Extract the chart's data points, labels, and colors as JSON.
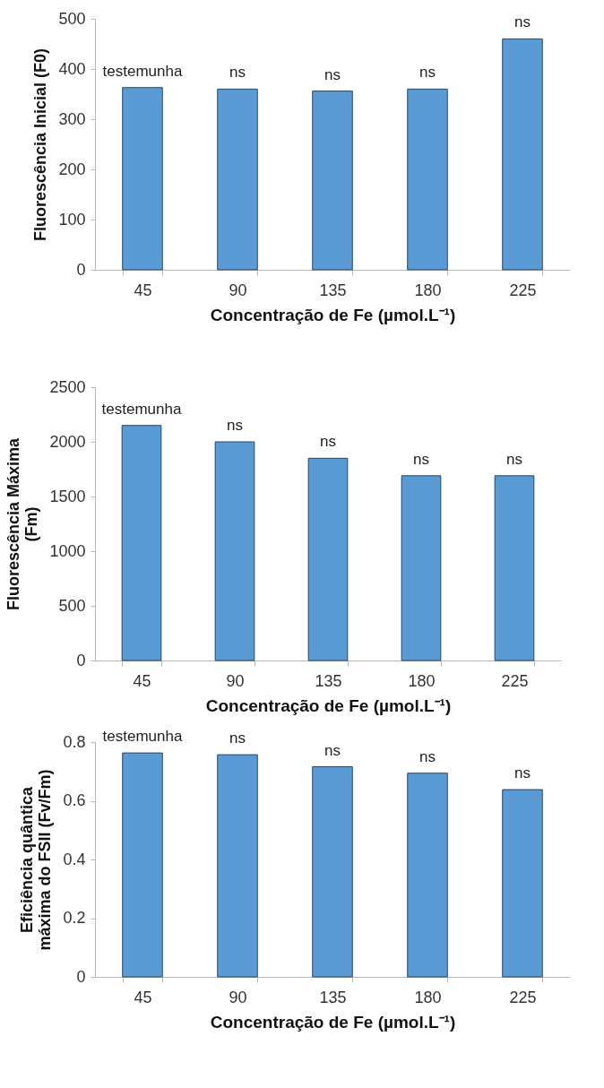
{
  "chart_data": [
    {
      "type": "bar",
      "categories": [
        "45",
        "90",
        "135",
        "180",
        "225"
      ],
      "values": [
        363,
        360,
        356,
        360,
        460
      ],
      "color": "#5b9bd5",
      "xlabel": "Concentração de Fe (µmol.L⁻¹)",
      "ylabel": "Fluorescência Inicial (F0)",
      "ylim": [
        0,
        500
      ],
      "yticks": [
        0,
        100,
        200,
        300,
        400,
        500
      ],
      "annotations": [
        {
          "text": "testemunha",
          "x": "45",
          "y": 363
        },
        {
          "text": "ns",
          "x": "90",
          "y": 360
        },
        {
          "text": "ns",
          "x": "135",
          "y": 356
        },
        {
          "text": "ns",
          "x": "180",
          "y": 360
        },
        {
          "text": "ns",
          "x": "225",
          "y": 460
        }
      ]
    },
    {
      "type": "bar",
      "categories": [
        "45",
        "90",
        "135",
        "180",
        "225"
      ],
      "values": [
        2150,
        2000,
        1850,
        1690,
        1690
      ],
      "color": "#5b9bd5",
      "xlabel": "Concentração de Fe (µmol.L⁻¹)",
      "ylabel": "Fluorescência Máxima\n(Fm)",
      "ylim": [
        0,
        2500
      ],
      "yticks": [
        0,
        500,
        1000,
        1500,
        2000,
        2500
      ],
      "annotations": [
        {
          "text": "testemunha",
          "x": "45",
          "y": 2150
        },
        {
          "text": "ns",
          "x": "90",
          "y": 2000
        },
        {
          "text": "ns",
          "x": "135",
          "y": 1850
        },
        {
          "text": "ns",
          "x": "180",
          "y": 1690
        },
        {
          "text": "ns",
          "x": "225",
          "y": 1690
        }
      ]
    },
    {
      "type": "bar",
      "categories": [
        "45",
        "90",
        "135",
        "180",
        "225"
      ],
      "values": [
        0.763,
        0.757,
        0.716,
        0.694,
        0.638
      ],
      "color": "#5b9bd5",
      "xlabel": "Concentração de Fe (µmol.L⁻¹)",
      "ylabel": "Eficiência quântica\nmáxima do FSII (Fv/Fm)",
      "ylim": [
        0,
        0.8
      ],
      "yticks": [
        0,
        0.2,
        0.4,
        0.6,
        0.8
      ],
      "annotations": [
        {
          "text": "testemunha",
          "x": "45",
          "y": 0.763
        },
        {
          "text": "ns",
          "x": "90",
          "y": 0.757
        },
        {
          "text": "ns",
          "x": "135",
          "y": 0.716
        },
        {
          "text": "ns",
          "x": "180",
          "y": 0.694
        },
        {
          "text": "ns",
          "x": "225",
          "y": 0.638
        }
      ]
    }
  ]
}
